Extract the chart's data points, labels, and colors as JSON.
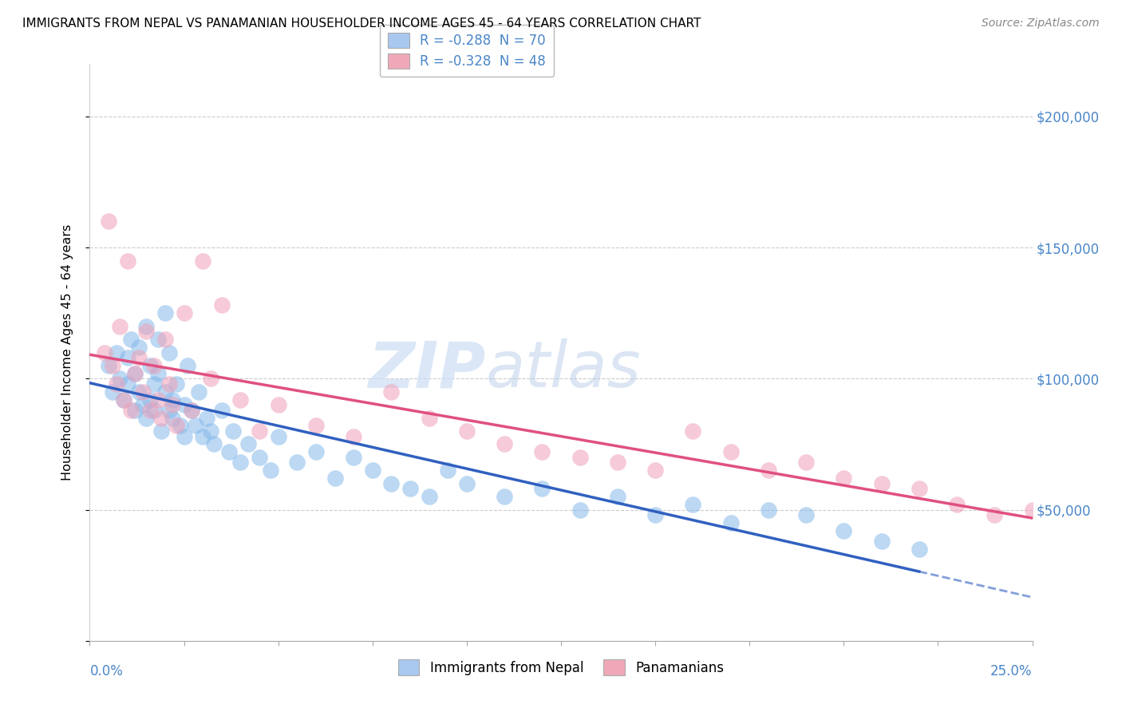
{
  "title": "IMMIGRANTS FROM NEPAL VS PANAMANIAN HOUSEHOLDER INCOME AGES 45 - 64 YEARS CORRELATION CHART",
  "source": "Source: ZipAtlas.com",
  "ylabel": "Householder Income Ages 45 - 64 years",
  "xlim": [
    0.0,
    0.25
  ],
  "ylim": [
    0,
    220000
  ],
  "yticks": [
    0,
    50000,
    100000,
    150000,
    200000
  ],
  "legend_entries": [
    {
      "label": "R = -0.288  N = 70",
      "color": "#a8c8f0"
    },
    {
      "label": "R = -0.328  N = 48",
      "color": "#f0a8b8"
    }
  ],
  "blue_color": "#85b8ea",
  "pink_color": "#f0a0b8",
  "blue_line_color": "#3060c0",
  "pink_line_color": "#e05080",
  "watermark_zip": "ZIP",
  "watermark_atlas": "atlas",
  "nepal_x": [
    0.005,
    0.006,
    0.007,
    0.008,
    0.009,
    0.01,
    0.01,
    0.011,
    0.012,
    0.012,
    0.013,
    0.013,
    0.014,
    0.015,
    0.015,
    0.016,
    0.016,
    0.017,
    0.017,
    0.018,
    0.018,
    0.019,
    0.02,
    0.02,
    0.021,
    0.021,
    0.022,
    0.022,
    0.023,
    0.024,
    0.025,
    0.025,
    0.026,
    0.027,
    0.028,
    0.029,
    0.03,
    0.031,
    0.032,
    0.033,
    0.035,
    0.037,
    0.038,
    0.04,
    0.042,
    0.045,
    0.048,
    0.05,
    0.055,
    0.06,
    0.065,
    0.07,
    0.075,
    0.08,
    0.085,
    0.09,
    0.095,
    0.1,
    0.11,
    0.12,
    0.13,
    0.14,
    0.15,
    0.16,
    0.17,
    0.18,
    0.19,
    0.2,
    0.21,
    0.22
  ],
  "nepal_y": [
    105000,
    95000,
    110000,
    100000,
    92000,
    108000,
    98000,
    115000,
    102000,
    88000,
    112000,
    95000,
    90000,
    120000,
    85000,
    105000,
    92000,
    98000,
    88000,
    102000,
    115000,
    80000,
    125000,
    95000,
    88000,
    110000,
    92000,
    85000,
    98000,
    82000,
    90000,
    78000,
    105000,
    88000,
    82000,
    95000,
    78000,
    85000,
    80000,
    75000,
    88000,
    72000,
    80000,
    68000,
    75000,
    70000,
    65000,
    78000,
    68000,
    72000,
    62000,
    70000,
    65000,
    60000,
    58000,
    55000,
    65000,
    60000,
    55000,
    58000,
    50000,
    55000,
    48000,
    52000,
    45000,
    50000,
    48000,
    42000,
    38000,
    35000
  ],
  "panama_x": [
    0.004,
    0.005,
    0.006,
    0.007,
    0.008,
    0.009,
    0.01,
    0.011,
    0.012,
    0.013,
    0.014,
    0.015,
    0.016,
    0.017,
    0.018,
    0.019,
    0.02,
    0.021,
    0.022,
    0.023,
    0.025,
    0.027,
    0.03,
    0.032,
    0.035,
    0.04,
    0.045,
    0.05,
    0.06,
    0.07,
    0.08,
    0.09,
    0.1,
    0.11,
    0.12,
    0.13,
    0.14,
    0.15,
    0.16,
    0.17,
    0.18,
    0.19,
    0.2,
    0.21,
    0.22,
    0.23,
    0.24,
    0.25
  ],
  "panama_y": [
    110000,
    160000,
    105000,
    98000,
    120000,
    92000,
    145000,
    88000,
    102000,
    108000,
    95000,
    118000,
    88000,
    105000,
    92000,
    85000,
    115000,
    98000,
    90000,
    82000,
    125000,
    88000,
    145000,
    100000,
    128000,
    92000,
    80000,
    90000,
    82000,
    78000,
    95000,
    85000,
    80000,
    75000,
    72000,
    70000,
    68000,
    65000,
    80000,
    72000,
    65000,
    68000,
    62000,
    60000,
    58000,
    52000,
    48000,
    50000
  ]
}
